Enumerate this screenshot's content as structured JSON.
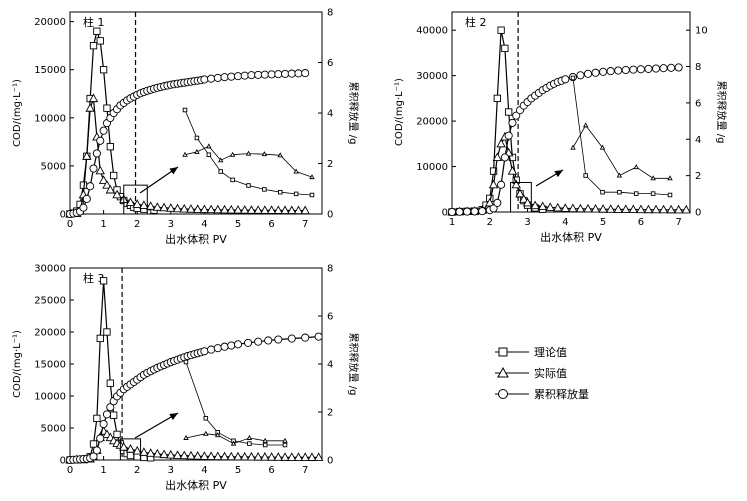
{
  "chart_data": [
    {
      "type": "line",
      "panel_label": "柱 1",
      "xlabel": "出水体积 PV",
      "ylabel": "COD/(mg·L⁻¹)",
      "y2label": "累积释放量 /g",
      "xlim": [
        0,
        7.5
      ],
      "ylim": [
        0,
        21000
      ],
      "y2lim": [
        0,
        8
      ],
      "xticks": [
        "0",
        "1",
        "2",
        "3",
        "4",
        "5",
        "6",
        "7"
      ],
      "yticks": [
        "0",
        "5000",
        "10000",
        "15000",
        "20000"
      ],
      "y2ticks": [
        "0",
        "2",
        "4",
        "6",
        "8"
      ],
      "breakthrough_pv": 1.95,
      "series": [
        {
          "name": "理论值",
          "marker": "square",
          "axis": "left",
          "x": [
            0,
            0.1,
            0.2,
            0.3,
            0.4,
            0.5,
            0.6,
            0.7,
            0.8,
            0.9,
            1.0,
            1.1,
            1.2,
            1.3,
            1.4,
            1.5,
            1.6,
            1.7,
            1.8,
            1.9,
            2.0,
            2.2,
            2.5
          ],
          "values": [
            0,
            100,
            300,
            1000,
            3000,
            6000,
            12000,
            17500,
            19000,
            18000,
            15000,
            11000,
            7000,
            4000,
            2500,
            1800,
            1400,
            1100,
            900,
            700,
            600,
            500,
            400
          ]
        },
        {
          "name": "实际值",
          "marker": "triangle",
          "axis": "left",
          "x": [
            0,
            0.2,
            0.3,
            0.4,
            0.5,
            0.6,
            0.7,
            0.8,
            0.9,
            1.0,
            1.1,
            1.2,
            1.4,
            1.6,
            1.8,
            2.0,
            2.2,
            2.4,
            2.6,
            2.8,
            3.0,
            3.2,
            3.4,
            3.6,
            3.8,
            4.0,
            4.2,
            4.4,
            4.6,
            4.8,
            5.0,
            5.2,
            5.4,
            5.6,
            5.8,
            6.0,
            6.2,
            6.4,
            6.6,
            6.8,
            7.0
          ],
          "values": [
            0,
            50,
            300,
            2000,
            6000,
            11000,
            12000,
            8000,
            4500,
            3500,
            3000,
            2500,
            2000,
            1500,
            1200,
            1000,
            900,
            800,
            700,
            650,
            600,
            550,
            520,
            500,
            480,
            460,
            450,
            440,
            430,
            420,
            410,
            400,
            390,
            385,
            380,
            375,
            370,
            365,
            360,
            355,
            350
          ]
        },
        {
          "name": "累积释放量",
          "marker": "circle",
          "axis": "right",
          "x": [
            0,
            0.1,
            0.2,
            0.3,
            0.4,
            0.5,
            0.6,
            0.7,
            0.8,
            0.9,
            1.0,
            1.1,
            1.2,
            1.3,
            1.4,
            1.5,
            1.6,
            1.7,
            1.8,
            1.9,
            2.0,
            2.1,
            2.2,
            2.3,
            2.4,
            2.5,
            2.6,
            2.7,
            2.8,
            2.9,
            3.0,
            3.1,
            3.2,
            3.3,
            3.4,
            3.5,
            3.6,
            3.7,
            3.8,
            3.9,
            4.0,
            4.2,
            4.4,
            4.6,
            4.8,
            5.0,
            5.2,
            5.4,
            5.6,
            5.8,
            6.0,
            6.2,
            6.4,
            6.6,
            6.8,
            7.0
          ],
          "values": [
            0,
            0.02,
            0.05,
            0.1,
            0.25,
            0.6,
            1.1,
            1.8,
            2.4,
            2.9,
            3.3,
            3.6,
            3.8,
            4.0,
            4.15,
            4.3,
            4.4,
            4.5,
            4.58,
            4.65,
            4.72,
            4.78,
            4.83,
            4.88,
            4.92,
            4.96,
            5.0,
            5.03,
            5.06,
            5.09,
            5.12,
            5.14,
            5.16,
            5.18,
            5.2,
            5.22,
            5.24,
            5.26,
            5.28,
            5.3,
            5.33,
            5.36,
            5.39,
            5.42,
            5.44,
            5.46,
            5.48,
            5.5,
            5.51,
            5.52,
            5.53,
            5.54,
            5.55,
            5.56,
            5.57,
            5.58
          ]
        }
      ],
      "inset": {
        "x": [
          3.6,
          3.9,
          4.2,
          4.5,
          4.8,
          5.2,
          5.6,
          6.0,
          6.4,
          6.8
        ],
        "theoretical": [
          1800,
          1300,
          1000,
          700,
          550,
          450,
          380,
          330,
          300,
          280
        ],
        "measured": [
          1000,
          1050,
          1150,
          900,
          1000,
          1020,
          1010,
          990,
          700,
          600
        ]
      }
    },
    {
      "type": "line",
      "panel_label": "柱 2",
      "xlabel": "出水体积 PV",
      "ylabel": "COD/(mg·L⁻¹)",
      "y2label": "累积释放量 /g",
      "xlim": [
        1,
        7.3
      ],
      "ylim": [
        0,
        44000
      ],
      "y2lim": [
        0,
        11
      ],
      "xticks": [
        "1",
        "2",
        "3",
        "4",
        "5",
        "6",
        "7"
      ],
      "yticks": [
        "0",
        "10000",
        "20000",
        "30000",
        "40000"
      ],
      "y2ticks": [
        "0",
        "2",
        "4",
        "6",
        "8",
        "10"
      ],
      "breakthrough_pv": 2.75,
      "series": [
        {
          "name": "理论值",
          "marker": "square",
          "axis": "left",
          "x": [
            1.0,
            1.2,
            1.4,
            1.6,
            1.8,
            1.9,
            2.0,
            2.1,
            2.2,
            2.3,
            2.4,
            2.5,
            2.6,
            2.7,
            2.8,
            2.9,
            3.0,
            3.2,
            3.4
          ],
          "values": [
            0,
            100,
            150,
            200,
            500,
            1500,
            3000,
            9000,
            25000,
            40000,
            36000,
            22000,
            12000,
            7000,
            4000,
            2500,
            1500,
            900,
            600
          ]
        },
        {
          "name": "实际值",
          "marker": "triangle",
          "axis": "left",
          "x": [
            1.0,
            1.2,
            1.4,
            1.6,
            1.8,
            2.0,
            2.1,
            2.2,
            2.3,
            2.4,
            2.5,
            2.6,
            2.7,
            2.8,
            2.9,
            3.0,
            3.2,
            3.4,
            3.6,
            3.8,
            4.0,
            4.2,
            4.4,
            4.6,
            4.8,
            5.0,
            5.2,
            5.4,
            5.6,
            5.8,
            6.0,
            6.2,
            6.4,
            6.6,
            6.8,
            7.0,
            7.2
          ],
          "values": [
            0,
            50,
            100,
            150,
            400,
            2000,
            6000,
            12000,
            15000,
            16500,
            13000,
            9000,
            6000,
            4000,
            2800,
            2000,
            1400,
            1200,
            1000,
            900,
            800,
            750,
            700,
            680,
            650,
            620,
            600,
            580,
            560,
            540,
            520,
            510,
            500,
            490,
            480,
            470,
            460
          ]
        },
        {
          "name": "累积释放量",
          "marker": "circle",
          "axis": "right",
          "x": [
            1.0,
            1.2,
            1.4,
            1.6,
            1.8,
            2.0,
            2.1,
            2.2,
            2.3,
            2.4,
            2.5,
            2.6,
            2.7,
            2.8,
            2.9,
            3.0,
            3.1,
            3.2,
            3.3,
            3.4,
            3.5,
            3.6,
            3.7,
            3.8,
            3.9,
            4.0,
            4.2,
            4.4,
            4.6,
            4.8,
            5.0,
            5.2,
            5.4,
            5.6,
            5.8,
            6.0,
            6.2,
            6.4,
            6.6,
            6.8,
            7.0
          ],
          "values": [
            0,
            0.01,
            0.02,
            0.03,
            0.05,
            0.1,
            0.2,
            0.5,
            1.5,
            3.0,
            4.2,
            4.9,
            5.3,
            5.6,
            5.85,
            6.05,
            6.25,
            6.4,
            6.55,
            6.7,
            6.82,
            6.95,
            7.05,
            7.15,
            7.22,
            7.3,
            7.42,
            7.52,
            7.6,
            7.66,
            7.71,
            7.75,
            7.78,
            7.81,
            7.83,
            7.85,
            7.87,
            7.89,
            7.91,
            7.93,
            7.95
          ]
        }
      ],
      "inset": {
        "x": [
          4.3,
          4.6,
          5.0,
          5.4,
          5.8,
          6.2,
          6.6
        ],
        "theoretical": [
          5000,
          1500,
          900,
          900,
          850,
          850,
          800
        ],
        "measured": [
          2500,
          3300,
          2500,
          1500,
          1800,
          1400,
          1400
        ]
      }
    },
    {
      "type": "line",
      "panel_label": "柱 3",
      "xlabel": "出水体积 PV",
      "ylabel": "COD/(mg·L⁻¹)",
      "y2label": "累积释放量 /g",
      "xlim": [
        0,
        7.5
      ],
      "ylim": [
        0,
        30000
      ],
      "y2lim": [
        0,
        8
      ],
      "xticks": [
        "0",
        "1",
        "2",
        "3",
        "4",
        "5",
        "6",
        "7"
      ],
      "yticks": [
        "0",
        "5000",
        "10000",
        "15000",
        "20000",
        "25000",
        "30000"
      ],
      "y2ticks": [
        "0",
        "2",
        "4",
        "6",
        "8"
      ],
      "breakthrough_pv": 1.55,
      "series": [
        {
          "name": "理论值",
          "marker": "square",
          "axis": "left",
          "x": [
            0,
            0.2,
            0.4,
            0.6,
            0.7,
            0.8,
            0.9,
            1.0,
            1.1,
            1.2,
            1.3,
            1.4,
            1.5,
            1.6,
            1.7,
            1.8,
            2.0,
            2.2,
            2.4
          ],
          "values": [
            0,
            50,
            100,
            500,
            2500,
            6500,
            19000,
            28000,
            20000,
            12000,
            7000,
            4000,
            2500,
            1500,
            1000,
            700,
            500,
            400,
            350
          ]
        },
        {
          "name": "实际值",
          "marker": "triangle",
          "axis": "left",
          "x": [
            0,
            0.2,
            0.4,
            0.6,
            0.7,
            0.8,
            0.9,
            1.0,
            1.1,
            1.2,
            1.3,
            1.4,
            1.5,
            1.6,
            1.8,
            2.0,
            2.2,
            2.4,
            2.6,
            2.8,
            3.0,
            3.2,
            3.4,
            3.6,
            3.8,
            4.0,
            4.2,
            4.4,
            4.6,
            4.8,
            5.0,
            5.2,
            5.4,
            5.6,
            5.8,
            6.0,
            6.2,
            6.4,
            6.6,
            6.8,
            7.0,
            7.2,
            7.4
          ],
          "values": [
            0,
            20,
            50,
            150,
            500,
            1500,
            3500,
            4500,
            4000,
            3500,
            3000,
            2600,
            2300,
            2000,
            1700,
            1400,
            1200,
            1050,
            950,
            850,
            780,
            720,
            680,
            640,
            600,
            570,
            550,
            530,
            510,
            500,
            490,
            480,
            470,
            460,
            450,
            440,
            430,
            420,
            415,
            410,
            405,
            400,
            395
          ]
        },
        {
          "name": "累积释放量",
          "marker": "circle",
          "axis": "right",
          "x": [
            0,
            0.1,
            0.2,
            0.3,
            0.4,
            0.5,
            0.6,
            0.7,
            0.8,
            0.9,
            1.0,
            1.1,
            1.2,
            1.3,
            1.4,
            1.5,
            1.6,
            1.7,
            1.8,
            1.9,
            2.0,
            2.1,
            2.2,
            2.3,
            2.4,
            2.5,
            2.6,
            2.7,
            2.8,
            2.9,
            3.0,
            3.1,
            3.2,
            3.3,
            3.4,
            3.5,
            3.6,
            3.7,
            3.8,
            3.9,
            4.0,
            4.2,
            4.4,
            4.6,
            4.8,
            5.0,
            5.3,
            5.6,
            5.9,
            6.2,
            6.6,
            7.0,
            7.4
          ],
          "values": [
            0,
            0.01,
            0.02,
            0.03,
            0.04,
            0.05,
            0.08,
            0.15,
            0.4,
            0.9,
            1.5,
            1.9,
            2.2,
            2.45,
            2.65,
            2.8,
            2.95,
            3.05,
            3.15,
            3.25,
            3.35,
            3.45,
            3.55,
            3.63,
            3.7,
            3.77,
            3.84,
            3.9,
            3.96,
            4.02,
            4.08,
            4.13,
            4.18,
            4.23,
            4.28,
            4.33,
            4.37,
            4.41,
            4.45,
            4.49,
            4.53,
            4.6,
            4.66,
            4.72,
            4.77,
            4.82,
            4.88,
            4.93,
            4.98,
            5.02,
            5.06,
            5.1,
            5.14
          ]
        }
      ],
      "inset": {
        "x": [
          3.5,
          4.0,
          4.3,
          4.7,
          5.1,
          5.5,
          6.0
        ],
        "theoretical": [
          3500,
          1500,
          1000,
          700,
          600,
          550,
          550
        ],
        "measured": [
          800,
          950,
          900,
          600,
          800,
          700,
          700
        ]
      }
    }
  ],
  "legend": {
    "items": [
      {
        "name": "理论值",
        "marker": "square"
      },
      {
        "name": "实际值",
        "marker": "triangle"
      },
      {
        "name": "累积释放量",
        "marker": "circle"
      }
    ]
  }
}
